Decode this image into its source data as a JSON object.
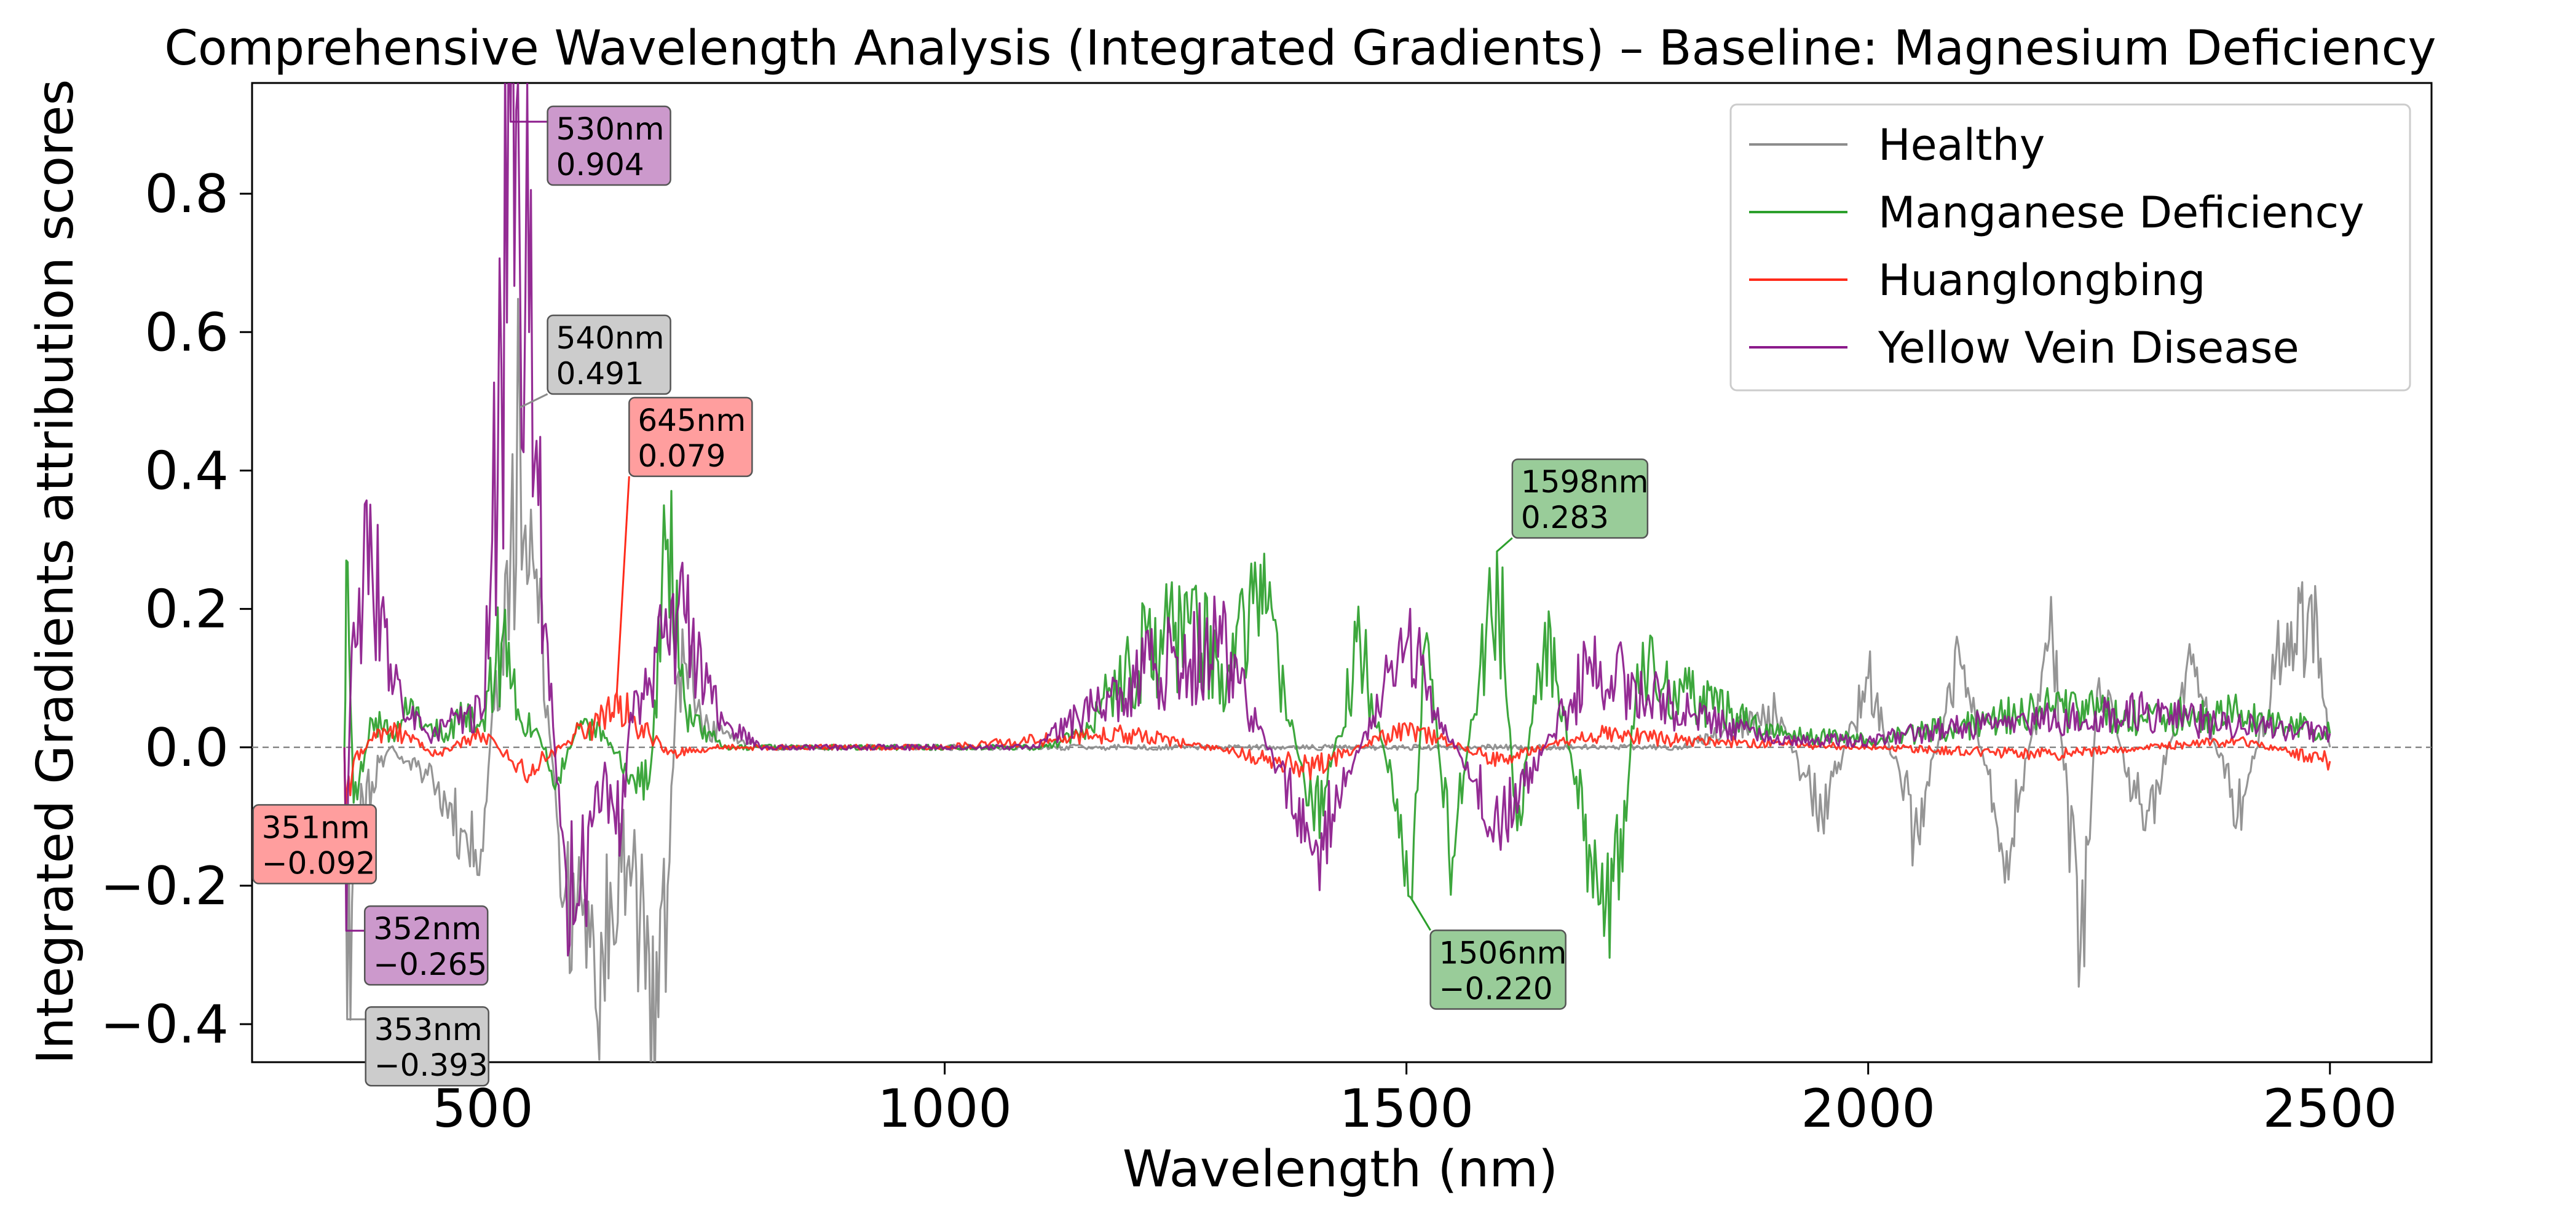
{
  "chart_data": {
    "type": "line",
    "title": "Comprehensive Wavelength Analysis (Integrated Gradients) – Baseline: Magnesium Deficiency",
    "xlabel": "Wavelength (nm)",
    "ylabel": "Integrated Gradients attribution scores",
    "xlim": [
      250,
      2610
    ],
    "ylim": [
      -0.455,
      0.96
    ],
    "xticks": [
      500,
      1000,
      1500,
      2000,
      2500
    ],
    "xtick_labels": [
      "500",
      "1000",
      "1500",
      "2000",
      "2500"
    ],
    "yticks": [
      -0.4,
      -0.2,
      0.0,
      0.2,
      0.4,
      0.6,
      0.8
    ],
    "ytick_labels": [
      "−0.4",
      "−0.2",
      "0.0",
      "0.2",
      "0.4",
      "0.6",
      "0.8"
    ],
    "zero_line": true,
    "grid": false,
    "legend_position": "top-right",
    "series": [
      {
        "name": "Healthy",
        "color": "#8c8c8c",
        "x": [
          350,
          353,
          360,
          380,
          400,
          420,
          440,
          460,
          480,
          500,
          510,
          520,
          530,
          540,
          550,
          560,
          570,
          580,
          590,
          600,
          610,
          620,
          630,
          640,
          650,
          660,
          670,
          680,
          690,
          700,
          710,
          720,
          740,
          760,
          780,
          800,
          850,
          900,
          950,
          1000,
          1100,
          1200,
          1300,
          1400,
          1500,
          1600,
          1700,
          1800,
          1900,
          1950,
          2000,
          2050,
          2100,
          2150,
          2200,
          2230,
          2250,
          2300,
          2350,
          2400,
          2450,
          2480,
          2500
        ],
        "y": [
          0.0,
          -0.393,
          -0.15,
          -0.05,
          0.0,
          -0.02,
          -0.04,
          -0.08,
          -0.12,
          -0.15,
          0.05,
          0.15,
          0.29,
          0.491,
          0.25,
          0.18,
          0.06,
          -0.1,
          -0.2,
          -0.25,
          -0.22,
          -0.28,
          -0.3,
          -0.24,
          -0.18,
          -0.2,
          -0.25,
          -0.3,
          -0.39,
          -0.2,
          0.1,
          0.12,
          0.03,
          0.02,
          0.01,
          0.0,
          0.0,
          0.0,
          0.0,
          0.0,
          0.0,
          0.0,
          0.0,
          0.0,
          0.0,
          0.0,
          0.0,
          0.0,
          0.05,
          -0.1,
          0.1,
          -0.12,
          0.12,
          -0.15,
          0.15,
          -0.29,
          0.1,
          -0.12,
          0.12,
          -0.1,
          0.15,
          0.22,
          0.0
        ]
      },
      {
        "name": "Manganese Deficiency",
        "color": "#2ca02c",
        "x": [
          350,
          352,
          355,
          360,
          380,
          400,
          420,
          440,
          460,
          480,
          500,
          520,
          540,
          560,
          580,
          600,
          620,
          640,
          660,
          680,
          700,
          720,
          760,
          800,
          900,
          1000,
          1100,
          1150,
          1200,
          1250,
          1300,
          1350,
          1400,
          1450,
          1500,
          1506,
          1520,
          1550,
          1580,
          1598,
          1620,
          1650,
          1700,
          1730,
          1750,
          1800,
          1850,
          1900,
          2000,
          2100,
          2200,
          2300,
          2400,
          2500
        ],
        "y": [
          0.0,
          0.27,
          0.15,
          -0.08,
          0.04,
          0.02,
          0.05,
          0.03,
          0.02,
          0.05,
          0.04,
          0.15,
          0.04,
          0.02,
          -0.05,
          0.02,
          0.03,
          0.0,
          -0.04,
          -0.05,
          0.3,
          0.05,
          0.0,
          0.0,
          0.0,
          0.0,
          0.0,
          0.02,
          0.12,
          0.18,
          0.12,
          0.2,
          -0.12,
          0.15,
          -0.15,
          -0.22,
          0.15,
          -0.16,
          0.12,
          0.283,
          -0.12,
          0.18,
          -0.16,
          -0.22,
          0.12,
          0.08,
          0.05,
          0.02,
          0.01,
          0.03,
          0.06,
          0.04,
          0.05,
          0.02
        ]
      },
      {
        "name": "Huanglongbing",
        "color": "#ff2a1a",
        "x": [
          350,
          351,
          360,
          380,
          400,
          450,
          500,
          550,
          600,
          620,
          640,
          645,
          660,
          680,
          700,
          750,
          800,
          1000,
          1200,
          1400,
          1500,
          1600,
          1700,
          1800,
          2000,
          2200,
          2400,
          2500
        ],
        "y": [
          0.0,
          -0.092,
          -0.02,
          0.01,
          0.03,
          -0.01,
          0.02,
          -0.04,
          0.02,
          0.03,
          0.05,
          0.079,
          0.04,
          0.02,
          -0.01,
          0.0,
          0.0,
          0.0,
          0.02,
          -0.03,
          0.03,
          -0.02,
          0.02,
          0.01,
          0.0,
          -0.01,
          0.01,
          -0.02
        ]
      },
      {
        "name": "Yellow Vein Disease",
        "color": "#8b1a8b",
        "x": [
          350,
          352,
          356,
          360,
          370,
          380,
          390,
          400,
          420,
          440,
          460,
          480,
          500,
          510,
          520,
          530,
          540,
          550,
          560,
          570,
          580,
          590,
          600,
          610,
          620,
          630,
          640,
          650,
          660,
          680,
          700,
          720,
          740,
          760,
          800,
          900,
          1000,
          1100,
          1200,
          1300,
          1400,
          1500,
          1600,
          1700,
          1800,
          1900,
          2000,
          2100,
          2200,
          2300,
          2400,
          2500
        ],
        "y": [
          0.0,
          -0.265,
          0.05,
          0.18,
          0.22,
          0.26,
          0.2,
          0.12,
          0.04,
          0.02,
          0.03,
          0.05,
          0.05,
          0.3,
          0.55,
          0.904,
          0.7,
          0.6,
          0.35,
          0.15,
          -0.05,
          -0.18,
          -0.25,
          -0.2,
          -0.1,
          -0.05,
          -0.08,
          -0.12,
          0.05,
          0.1,
          0.15,
          0.18,
          0.08,
          0.04,
          0.0,
          0.0,
          0.0,
          0.0,
          0.1,
          0.15,
          -0.15,
          0.15,
          -0.12,
          0.12,
          0.05,
          0.01,
          0.01,
          0.03,
          0.04,
          0.05,
          0.03,
          0.02
        ]
      }
    ],
    "annotations": [
      {
        "series": "Yellow Vein Disease",
        "wavelength_label": "530nm",
        "value_label": "0.904",
        "x": 530,
        "y": 0.904,
        "color": "#8b1a8b",
        "box_color": "#cc99cc"
      },
      {
        "series": "Healthy",
        "wavelength_label": "540nm",
        "value_label": "0.491",
        "x": 540,
        "y": 0.491,
        "color": "#8c8c8c",
        "box_color": "#cccccc"
      },
      {
        "series": "Huanglongbing",
        "wavelength_label": "645nm",
        "value_label": "0.079",
        "x": 645,
        "y": 0.079,
        "color": "#ff2a1a",
        "box_color": "#ff9e9e"
      },
      {
        "series": "Manganese Deficiency",
        "wavelength_label": "1598nm",
        "value_label": "0.283",
        "x": 1598,
        "y": 0.283,
        "color": "#2ca02c",
        "box_color": "#99cc99"
      },
      {
        "series": "Manganese Deficiency",
        "wavelength_label": "1506nm",
        "value_label": "−0.220",
        "x": 1506,
        "y": -0.22,
        "color": "#2ca02c",
        "box_color": "#99cc99"
      },
      {
        "series": "Huanglongbing",
        "wavelength_label": "351nm",
        "value_label": "−0.092",
        "x": 351,
        "y": -0.092,
        "color": "#ff2a1a",
        "box_color": "#ff9e9e"
      },
      {
        "series": "Yellow Vein Disease",
        "wavelength_label": "352nm",
        "value_label": "−0.265",
        "x": 352,
        "y": -0.265,
        "color": "#8b1a8b",
        "box_color": "#cc99cc"
      },
      {
        "series": "Healthy",
        "wavelength_label": "353nm",
        "value_label": "−0.393",
        "x": 353,
        "y": -0.393,
        "color": "#8c8c8c",
        "box_color": "#cccccc"
      }
    ]
  }
}
